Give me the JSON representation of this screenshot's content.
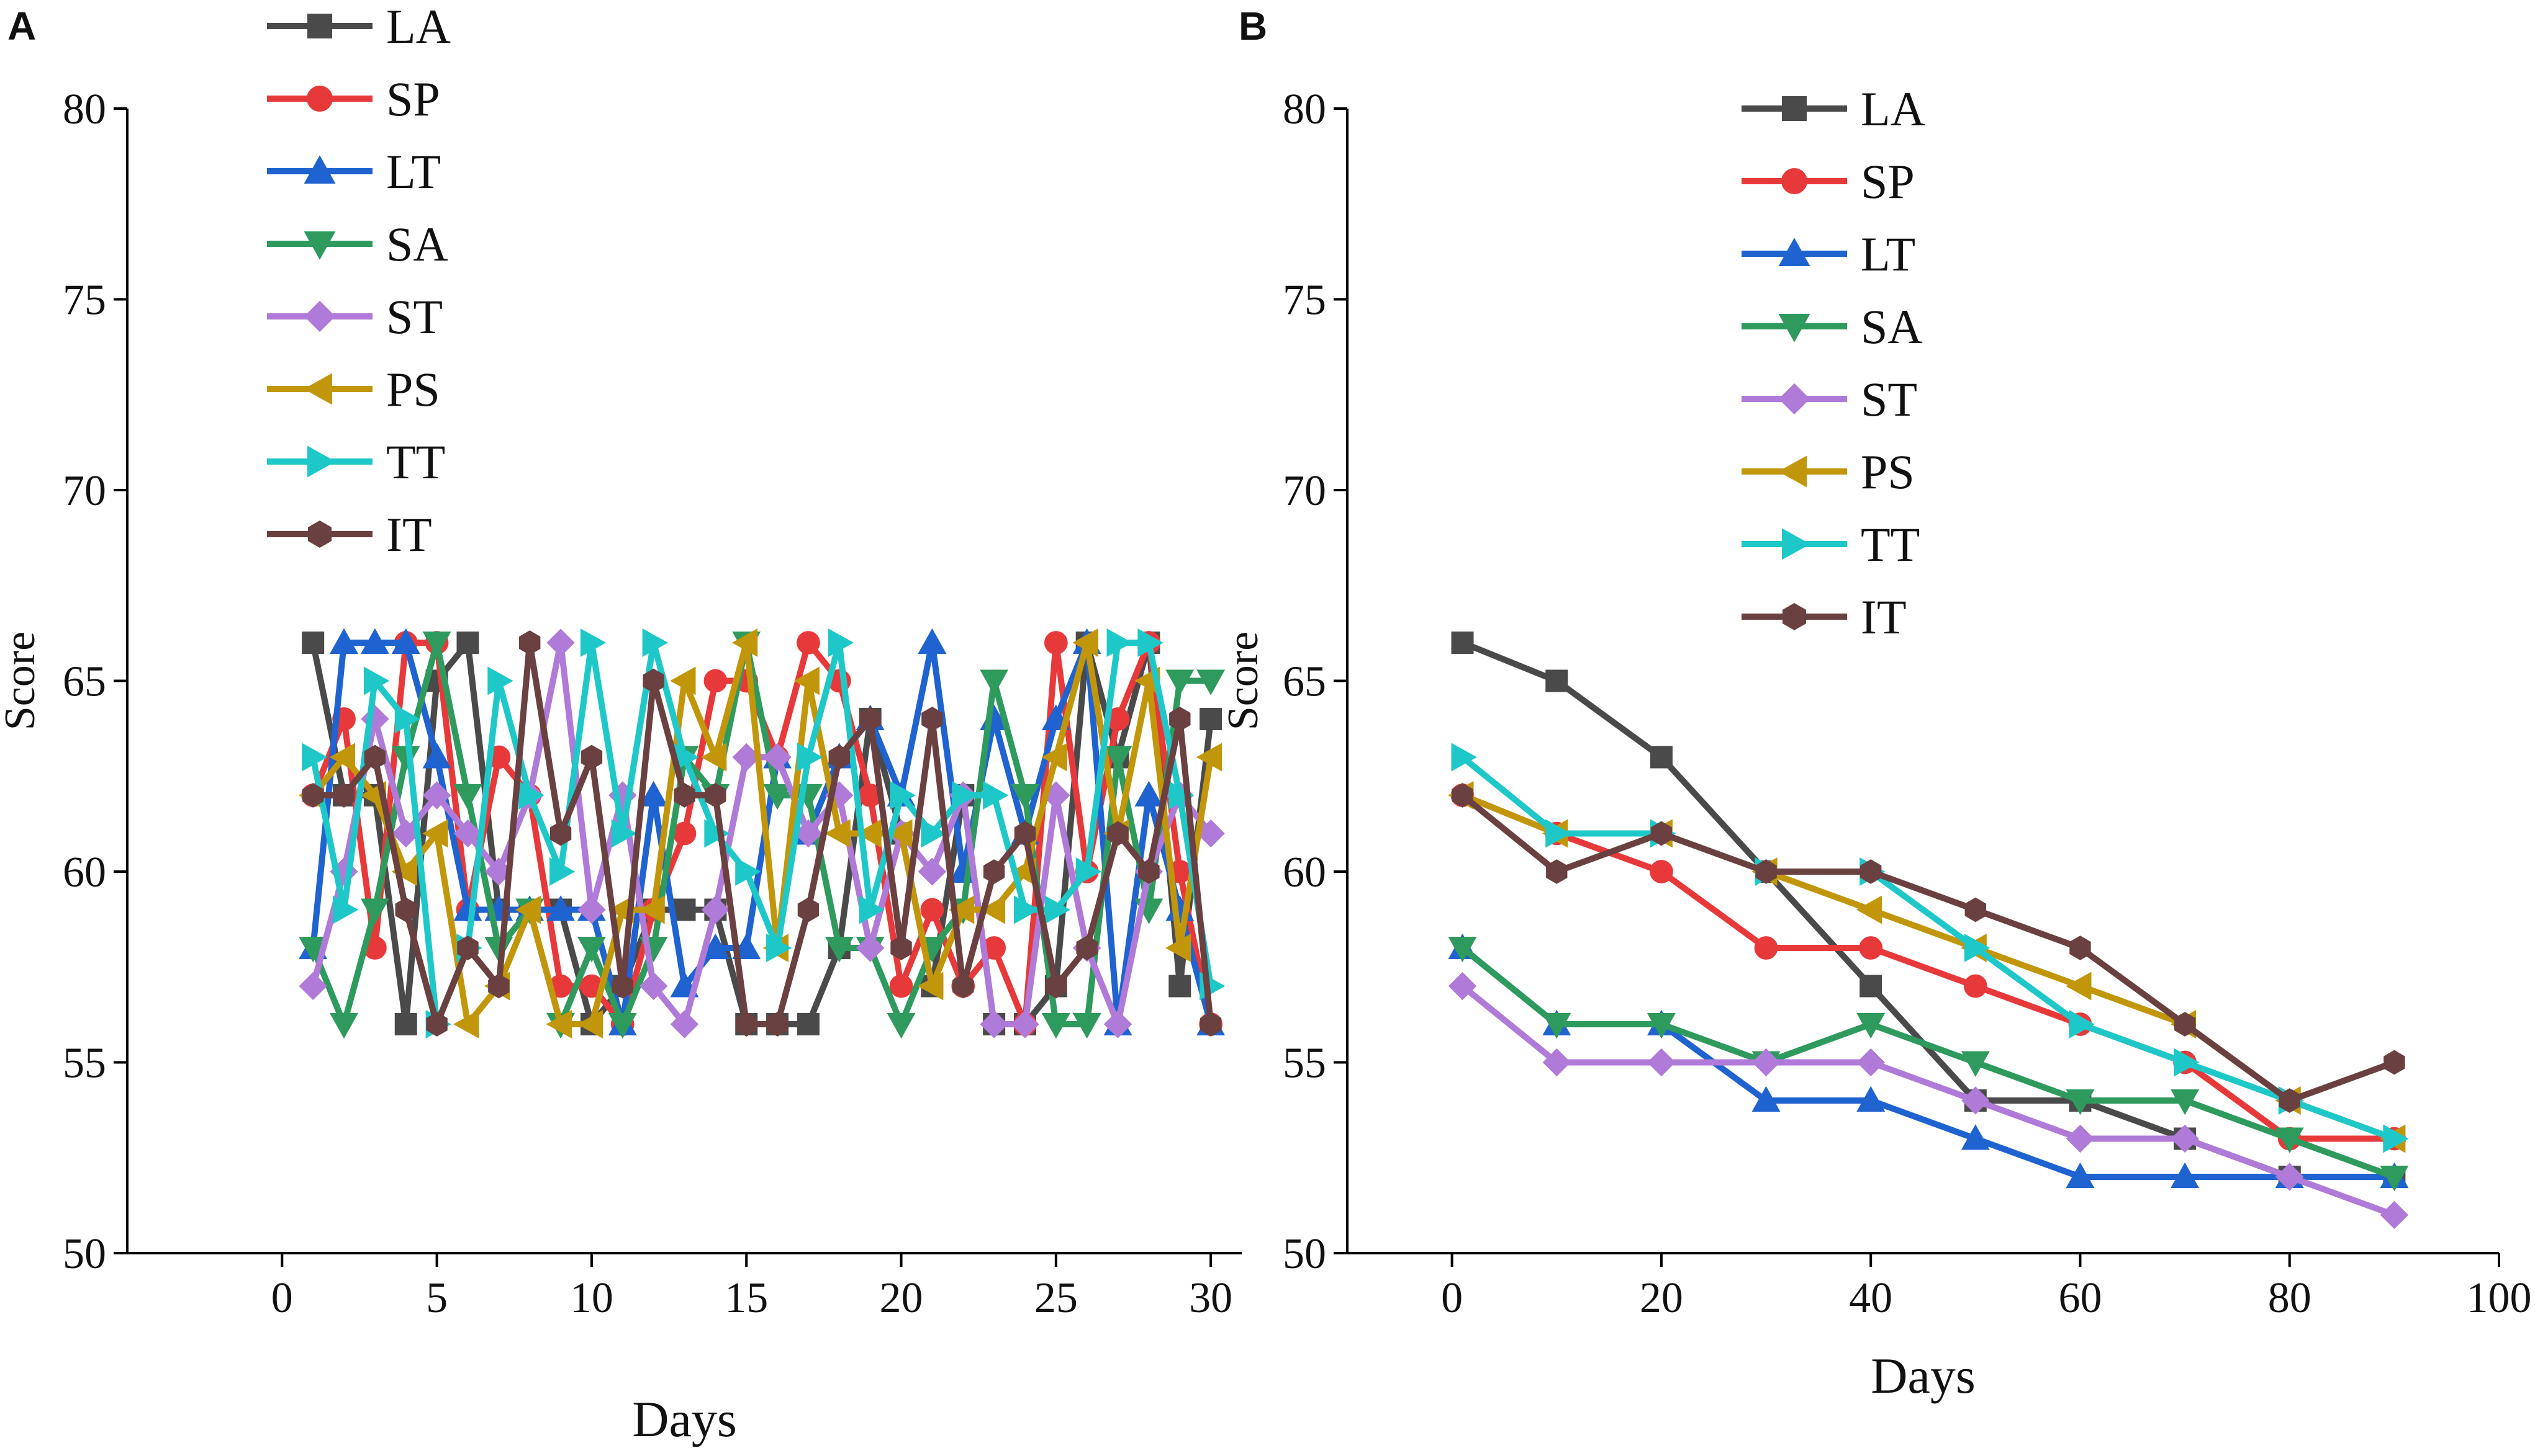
{
  "panel_labels": [
    "A",
    "B"
  ],
  "colors": {
    "LA": "#4a4a4a",
    "SP": "#e8393a",
    "LT": "#1f63d0",
    "SA": "#2e9a5e",
    "ST": "#b07ad8",
    "PS": "#c2960a",
    "TT": "#1fc8c8",
    "IT": "#6b4040"
  },
  "chart_data": [
    {
      "type": "line",
      "panel": "A",
      "title": "",
      "xlabel": "Days",
      "ylabel": "Score",
      "xlim": [
        -5,
        31
      ],
      "ylim": [
        50,
        80
      ],
      "xticks": [
        0,
        5,
        10,
        15,
        20,
        25,
        30
      ],
      "yticks": [
        50,
        55,
        60,
        65,
        70,
        75,
        80
      ],
      "legend_position": "top-left",
      "x": [
        1,
        2,
        3,
        4,
        5,
        6,
        7,
        8,
        9,
        10,
        11,
        12,
        13,
        14,
        15,
        16,
        17,
        18,
        19,
        20,
        21,
        22,
        23,
        24,
        25,
        26,
        27,
        28,
        29,
        30
      ],
      "series": [
        {
          "name": "LA",
          "marker": "square",
          "values": [
            66,
            62,
            62,
            56,
            65,
            66,
            59,
            59,
            59,
            56,
            57,
            59,
            59,
            59,
            56,
            56,
            56,
            58,
            64,
            61,
            57,
            62,
            56,
            56,
            57,
            66,
            63,
            66,
            57,
            64
          ]
        },
        {
          "name": "SP",
          "marker": "circle",
          "values": [
            62,
            64,
            58,
            66,
            66,
            59,
            63,
            62,
            57,
            57,
            56,
            59,
            61,
            65,
            65,
            63,
            66,
            65,
            62,
            57,
            59,
            57,
            58,
            56,
            66,
            60,
            64,
            66,
            60,
            56
          ]
        },
        {
          "name": "LT",
          "marker": "triangle-up",
          "values": [
            58,
            66,
            66,
            66,
            63,
            59,
            59,
            59,
            59,
            59,
            56,
            62,
            57,
            58,
            58,
            63,
            61,
            63,
            64,
            62,
            66,
            60,
            64,
            61,
            64,
            66,
            56,
            62,
            59,
            56
          ]
        },
        {
          "name": "SA",
          "marker": "triangle-down",
          "values": [
            58,
            56,
            59,
            63,
            66,
            62,
            58,
            59,
            56,
            58,
            56,
            58,
            63,
            62,
            66,
            62,
            62,
            58,
            58,
            56,
            58,
            59,
            65,
            62,
            56,
            56,
            63,
            59,
            65,
            65
          ]
        },
        {
          "name": "ST",
          "marker": "diamond",
          "values": [
            57,
            60,
            64,
            61,
            62,
            61,
            60,
            62,
            66,
            59,
            62,
            57,
            56,
            59,
            63,
            63,
            61,
            62,
            58,
            61,
            60,
            62,
            56,
            56,
            62,
            58,
            56,
            60,
            62,
            61
          ]
        },
        {
          "name": "PS",
          "marker": "triangle-left",
          "values": [
            62,
            63,
            62,
            60,
            61,
            56,
            57,
            59,
            56,
            56,
            59,
            59,
            65,
            63,
            66,
            58,
            65,
            61,
            61,
            61,
            57,
            59,
            59,
            60,
            63,
            66,
            61,
            65,
            58,
            63
          ]
        },
        {
          "name": "TT",
          "marker": "triangle-right",
          "values": [
            63,
            59,
            65,
            64,
            56,
            58,
            65,
            62,
            60,
            66,
            61,
            66,
            63,
            61,
            60,
            58,
            63,
            66,
            59,
            62,
            61,
            62,
            62,
            59,
            59,
            60,
            66,
            66,
            62,
            57
          ]
        },
        {
          "name": "IT",
          "marker": "hexagon",
          "values": [
            62,
            62,
            63,
            59,
            56,
            58,
            57,
            66,
            61,
            63,
            57,
            65,
            62,
            62,
            56,
            56,
            59,
            63,
            64,
            58,
            64,
            57,
            60,
            61,
            57,
            58,
            61,
            60,
            64,
            56
          ]
        }
      ]
    },
    {
      "type": "line",
      "panel": "B",
      "title": "",
      "xlabel": "Days",
      "ylabel": "Score",
      "xlim": [
        -10,
        100
      ],
      "ylim": [
        50,
        80
      ],
      "xticks": [
        0,
        20,
        40,
        60,
        80,
        100
      ],
      "yticks": [
        50,
        55,
        60,
        65,
        70,
        75,
        80
      ],
      "legend_position": "top-center",
      "x": [
        1,
        10,
        20,
        30,
        40,
        50,
        60,
        70,
        80,
        90
      ],
      "series": [
        {
          "name": "LA",
          "marker": "square",
          "values": [
            66,
            65,
            63,
            60,
            57,
            54,
            54,
            53,
            52,
            52
          ]
        },
        {
          "name": "SP",
          "marker": "circle",
          "values": [
            62,
            61,
            60,
            58,
            58,
            57,
            56,
            55,
            53,
            53
          ]
        },
        {
          "name": "LT",
          "marker": "triangle-up",
          "values": [
            58,
            56,
            56,
            54,
            54,
            53,
            52,
            52,
            52,
            52
          ]
        },
        {
          "name": "SA",
          "marker": "triangle-down",
          "values": [
            58,
            56,
            56,
            55,
            56,
            55,
            54,
            54,
            53,
            52
          ]
        },
        {
          "name": "ST",
          "marker": "diamond",
          "values": [
            57,
            55,
            55,
            55,
            55,
            54,
            53,
            53,
            52,
            51
          ]
        },
        {
          "name": "PS",
          "marker": "triangle-left",
          "values": [
            62,
            61,
            61,
            60,
            59,
            58,
            57,
            56,
            54,
            53
          ]
        },
        {
          "name": "TT",
          "marker": "triangle-right",
          "values": [
            63,
            61,
            61,
            60,
            60,
            58,
            56,
            55,
            54,
            53
          ]
        },
        {
          "name": "IT",
          "marker": "hexagon",
          "values": [
            62,
            60,
            61,
            60,
            60,
            59,
            58,
            56,
            54,
            55
          ]
        }
      ]
    }
  ]
}
